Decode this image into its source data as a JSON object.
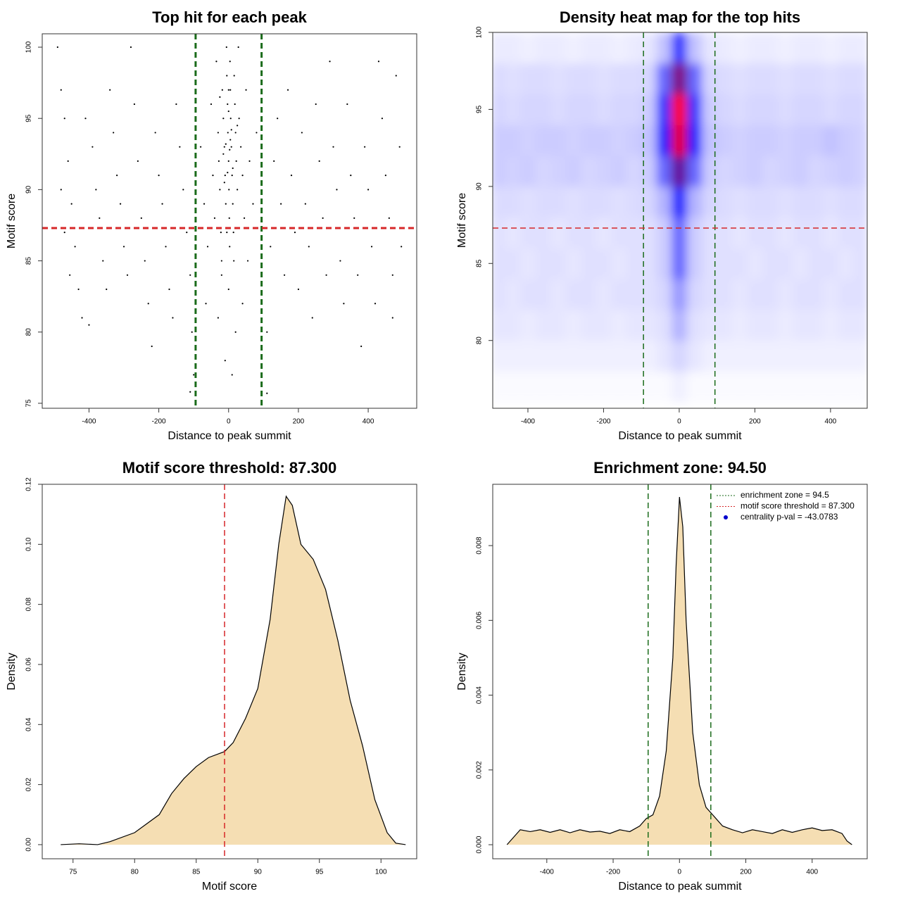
{
  "chart_data": [
    {
      "type": "scatter",
      "title": "Top hit for each peak",
      "x_label": "Distance to peak summit",
      "y_label": "Motif score",
      "xlim": [
        -534,
        539
      ],
      "ylim": [
        74.65,
        100.94
      ],
      "xticks": [
        -400,
        -200,
        0,
        200,
        400
      ],
      "yticks": [
        75,
        80,
        85,
        90,
        95,
        100
      ],
      "color": "#000000",
      "x": [
        -490,
        -480,
        -470,
        -460,
        -450,
        -440,
        -430,
        -420,
        -480,
        -470,
        -455,
        -400,
        -410,
        -390,
        -380,
        -370,
        -360,
        -350,
        -340,
        -330,
        -320,
        -310,
        -300,
        -290,
        -280,
        -270,
        -260,
        -250,
        -240,
        -230,
        -220,
        -210,
        -200,
        -190,
        -180,
        -170,
        -160,
        -150,
        -140,
        -130,
        -120,
        -110,
        -105,
        -100,
        110,
        120,
        130,
        140,
        150,
        160,
        170,
        180,
        190,
        200,
        210,
        220,
        230,
        240,
        250,
        260,
        270,
        280,
        290,
        300,
        310,
        320,
        330,
        340,
        350,
        360,
        370,
        380,
        390,
        400,
        410,
        420,
        430,
        440,
        450,
        460,
        470,
        480,
        490,
        495,
        470,
        -80,
        -70,
        -60,
        -50,
        -45,
        -40,
        -35,
        -30,
        -28,
        -25,
        -22,
        -20,
        -18,
        -15,
        -12,
        -10,
        -8,
        -6,
        -5,
        -3,
        -2,
        0,
        1,
        2,
        3,
        4,
        5,
        6,
        8,
        10,
        12,
        14,
        16,
        18,
        20,
        22,
        25,
        28,
        30,
        35,
        40,
        45,
        50,
        55,
        60,
        70,
        80,
        -65,
        -30,
        0,
        20,
        40,
        -10,
        10,
        -20,
        15,
        -5,
        5,
        -15,
        25,
        -25,
        0,
        0,
        12,
        -12,
        8,
        -8,
        3,
        -3,
        110,
        -110
      ],
      "y": [
        100,
        97,
        95,
        92,
        89,
        86,
        83,
        81,
        90,
        87,
        84,
        80.5,
        95,
        93,
        90,
        88,
        85,
        83,
        97,
        94,
        91,
        89,
        86,
        84,
        100,
        96,
        92,
        88,
        85,
        82,
        79,
        94,
        91,
        89,
        86,
        83,
        81,
        96,
        93,
        90,
        87,
        84,
        80,
        77,
        80,
        86,
        92,
        95,
        89,
        84,
        97,
        91,
        87,
        83,
        94,
        89,
        86,
        81,
        96,
        92,
        88,
        84,
        99,
        93,
        90,
        85,
        82,
        96,
        91,
        88,
        84,
        79,
        93,
        90,
        86,
        82,
        99,
        95,
        91,
        88,
        84,
        98,
        93,
        86,
        81,
        93,
        89,
        86,
        96,
        91,
        88,
        99,
        94,
        92,
        90,
        87,
        85,
        97,
        95,
        93,
        91,
        89,
        100,
        98,
        96,
        94,
        92,
        90,
        88,
        86,
        99,
        97,
        95,
        93,
        91,
        89,
        87,
        98,
        96,
        94,
        92,
        90,
        100,
        95,
        93,
        91,
        88,
        97,
        85,
        92,
        89,
        94,
        82,
        81,
        83,
        80,
        82,
        78,
        77,
        84,
        85,
        87,
        93.5,
        92.5,
        94.5,
        96.5,
        95.5,
        97,
        91.5,
        90.5,
        94.2,
        93.2,
        92.8,
        91.2,
        75.7,
        75.8
      ],
      "vlines": [
        {
          "value": -94.5,
          "color": "#1a6b1a"
        },
        {
          "value": 94.5,
          "color": "#1a6b1a"
        }
      ],
      "hlines": [
        {
          "value": 87.3,
          "color": "#d62728"
        }
      ],
      "line_width": 3
    },
    {
      "type": "heatmap",
      "title": "Density heat map for the top hits",
      "x_label": "Distance to peak summit",
      "y_label": "Motif score",
      "xlim": [
        -493,
        497
      ],
      "ylim": [
        75.6,
        100
      ],
      "xticks": [
        -400,
        -200,
        0,
        200,
        400
      ],
      "yticks": [
        80,
        85,
        90,
        95,
        100
      ],
      "colors": [
        "#ffffff",
        "#0000ff",
        "#ff0000"
      ],
      "xbins": [
        -500,
        -460,
        -420,
        -380,
        -340,
        -300,
        -260,
        -220,
        -180,
        -140,
        -100,
        -60,
        -20,
        20,
        60,
        100,
        140,
        180,
        220,
        260,
        300,
        340,
        380,
        420,
        460,
        500
      ],
      "ybins": [
        76,
        78,
        80,
        82,
        84,
        86,
        88,
        90,
        92,
        94,
        96,
        98,
        100
      ],
      "z": [
        [
          0.01,
          0.01,
          0.01,
          0.01,
          0.01,
          0.01,
          0.01,
          0.01,
          0.01,
          0.01,
          0.01,
          0.01,
          0.03,
          0.01,
          0.01,
          0.01,
          0.01,
          0.01,
          0.01,
          0.01,
          0.01,
          0.01,
          0.01,
          0.01,
          0.01
        ],
        [
          0.03,
          0.03,
          0.03,
          0.03,
          0.03,
          0.03,
          0.03,
          0.03,
          0.03,
          0.03,
          0.03,
          0.05,
          0.08,
          0.05,
          0.03,
          0.03,
          0.03,
          0.03,
          0.03,
          0.03,
          0.03,
          0.03,
          0.03,
          0.03,
          0.03
        ],
        [
          0.05,
          0.05,
          0.04,
          0.05,
          0.05,
          0.04,
          0.05,
          0.05,
          0.04,
          0.05,
          0.05,
          0.06,
          0.15,
          0.06,
          0.05,
          0.05,
          0.04,
          0.05,
          0.05,
          0.04,
          0.05,
          0.05,
          0.04,
          0.05,
          0.05
        ],
        [
          0.06,
          0.05,
          0.06,
          0.06,
          0.05,
          0.06,
          0.06,
          0.05,
          0.06,
          0.06,
          0.06,
          0.08,
          0.2,
          0.08,
          0.06,
          0.06,
          0.05,
          0.06,
          0.06,
          0.05,
          0.06,
          0.06,
          0.05,
          0.06,
          0.06
        ],
        [
          0.06,
          0.06,
          0.05,
          0.06,
          0.06,
          0.05,
          0.06,
          0.06,
          0.05,
          0.06,
          0.06,
          0.1,
          0.3,
          0.1,
          0.06,
          0.06,
          0.06,
          0.05,
          0.06,
          0.06,
          0.05,
          0.06,
          0.06,
          0.05,
          0.06
        ],
        [
          0.06,
          0.05,
          0.06,
          0.06,
          0.05,
          0.06,
          0.06,
          0.05,
          0.06,
          0.06,
          0.06,
          0.1,
          0.3,
          0.1,
          0.06,
          0.06,
          0.05,
          0.06,
          0.06,
          0.05,
          0.06,
          0.06,
          0.05,
          0.06,
          0.06
        ],
        [
          0.07,
          0.07,
          0.06,
          0.07,
          0.07,
          0.06,
          0.07,
          0.07,
          0.06,
          0.07,
          0.08,
          0.15,
          0.45,
          0.15,
          0.08,
          0.07,
          0.06,
          0.07,
          0.07,
          0.06,
          0.07,
          0.07,
          0.06,
          0.07,
          0.07
        ],
        [
          0.1,
          0.09,
          0.1,
          0.08,
          0.09,
          0.1,
          0.08,
          0.09,
          0.1,
          0.08,
          0.1,
          0.3,
          0.7,
          0.3,
          0.1,
          0.08,
          0.09,
          0.1,
          0.08,
          0.09,
          0.1,
          0.08,
          0.09,
          0.1,
          0.09
        ],
        [
          0.1,
          0.1,
          0.09,
          0.1,
          0.1,
          0.09,
          0.1,
          0.1,
          0.09,
          0.1,
          0.12,
          0.45,
          0.95,
          0.45,
          0.12,
          0.1,
          0.09,
          0.1,
          0.1,
          0.09,
          0.1,
          0.1,
          0.12,
          0.1,
          0.09
        ],
        [
          0.08,
          0.07,
          0.08,
          0.08,
          0.07,
          0.08,
          0.08,
          0.07,
          0.08,
          0.08,
          0.1,
          0.4,
          1.0,
          0.4,
          0.1,
          0.08,
          0.07,
          0.08,
          0.08,
          0.07,
          0.08,
          0.08,
          0.07,
          0.08,
          0.08
        ],
        [
          0.07,
          0.06,
          0.07,
          0.07,
          0.06,
          0.07,
          0.07,
          0.06,
          0.07,
          0.07,
          0.08,
          0.3,
          0.75,
          0.3,
          0.08,
          0.07,
          0.06,
          0.07,
          0.07,
          0.06,
          0.07,
          0.07,
          0.06,
          0.07,
          0.07
        ],
        [
          0.04,
          0.04,
          0.03,
          0.04,
          0.04,
          0.03,
          0.04,
          0.04,
          0.03,
          0.04,
          0.05,
          0.12,
          0.4,
          0.12,
          0.05,
          0.04,
          0.03,
          0.04,
          0.04,
          0.03,
          0.04,
          0.04,
          0.03,
          0.04,
          0.04
        ]
      ],
      "vlines": [
        {
          "value": -94.5,
          "color": "#1a6b1a"
        },
        {
          "value": 94.5,
          "color": "#1a6b1a"
        }
      ],
      "hlines": [
        {
          "value": 87.3,
          "color": "#d62728"
        }
      ],
      "line_width": 1.5
    },
    {
      "type": "area",
      "title": "Motif score threshold: 87.300",
      "x_label": "Motif score",
      "y_label": "Density",
      "xlim": [
        72.5,
        102.9
      ],
      "ylim": [
        -0.0047,
        0.12
      ],
      "xticks": [
        75,
        80,
        85,
        90,
        95,
        100
      ],
      "yticks": [
        {
          "value": 0,
          "label": "0.00"
        },
        {
          "value": 0.02,
          "label": "0.02"
        },
        {
          "value": 0.04,
          "label": "0.04"
        },
        {
          "value": 0.06,
          "label": "0.06"
        },
        {
          "value": 0.08,
          "label": "0.08"
        },
        {
          "value": 0.1,
          "label": "0.10"
        },
        {
          "value": 0.12,
          "label": "0.12"
        }
      ],
      "fill": "#f5deb3",
      "line": "#000000",
      "x": [
        74,
        75.5,
        77,
        78,
        80,
        82,
        83,
        84,
        85,
        86,
        87.3,
        88,
        89,
        90,
        91,
        91.7,
        92.3,
        92.8,
        93.5,
        94.5,
        95.5,
        96.5,
        97.5,
        98.5,
        99.5,
        100.5,
        101.2,
        102
      ],
      "y": [
        0,
        0.0003,
        0,
        0.001,
        0.004,
        0.01,
        0.017,
        0.022,
        0.026,
        0.029,
        0.031,
        0.034,
        0.042,
        0.052,
        0.075,
        0.1,
        0.116,
        0.113,
        0.1,
        0.095,
        0.085,
        0.068,
        0.048,
        0.033,
        0.015,
        0.004,
        0.0005,
        0
      ],
      "vlines": [
        {
          "value": 87.3,
          "color": "#d62728"
        }
      ],
      "line_width": 1.5
    },
    {
      "type": "area",
      "title": "Enrichment zone: 94.50",
      "x_label": "Distance to peak summit",
      "y_label": "Density",
      "xlim": [
        -563,
        566
      ],
      "ylim": [
        -0.000376,
        0.00964
      ],
      "xticks": [
        -400,
        -200,
        0,
        200,
        400
      ],
      "yticks": [
        {
          "value": 0,
          "label": "0.000"
        },
        {
          "value": 0.002,
          "label": "0.002"
        },
        {
          "value": 0.004,
          "label": "0.004"
        },
        {
          "value": 0.006,
          "label": "0.006"
        },
        {
          "value": 0.008,
          "label": "0.008"
        }
      ],
      "fill": "#f5deb3",
      "line": "#000000",
      "x": [
        -520,
        -500,
        -480,
        -450,
        -420,
        -390,
        -360,
        -330,
        -300,
        -270,
        -240,
        -210,
        -180,
        -150,
        -120,
        -100,
        -80,
        -60,
        -40,
        -20,
        -10,
        0,
        10,
        20,
        40,
        60,
        80,
        100,
        130,
        160,
        190,
        220,
        250,
        280,
        310,
        340,
        370,
        400,
        430,
        460,
        490,
        505,
        520
      ],
      "y": [
        0,
        0.0002,
        0.0004,
        0.00035,
        0.0004,
        0.00033,
        0.0004,
        0.00032,
        0.0004,
        0.00034,
        0.00036,
        0.0003,
        0.0004,
        0.00035,
        0.0005,
        0.0007,
        0.0008,
        0.0013,
        0.0025,
        0.005,
        0.0075,
        0.0093,
        0.0085,
        0.006,
        0.003,
        0.0016,
        0.001,
        0.0008,
        0.0005,
        0.0004,
        0.00032,
        0.0004,
        0.00035,
        0.0003,
        0.0004,
        0.00033,
        0.0004,
        0.00045,
        0.00038,
        0.0004,
        0.0003,
        0.0001,
        0
      ],
      "vlines": [
        {
          "value": -94.5,
          "color": "#1a6b1a"
        },
        {
          "value": 94.5,
          "color": "#1a6b1a"
        }
      ],
      "line_width": 1.5,
      "legend": "topright",
      "legend_entries": [
        {
          "label": "enrichment zone = 94.5",
          "color": "#1a6b1a",
          "style": "dotted"
        },
        {
          "label": "motif score threshold = 87.300",
          "color": "#d62728",
          "style": "dotted"
        },
        {
          "label": "centrality p-val = -43.0783",
          "color": "#0000cc",
          "style": "point"
        }
      ]
    }
  ]
}
